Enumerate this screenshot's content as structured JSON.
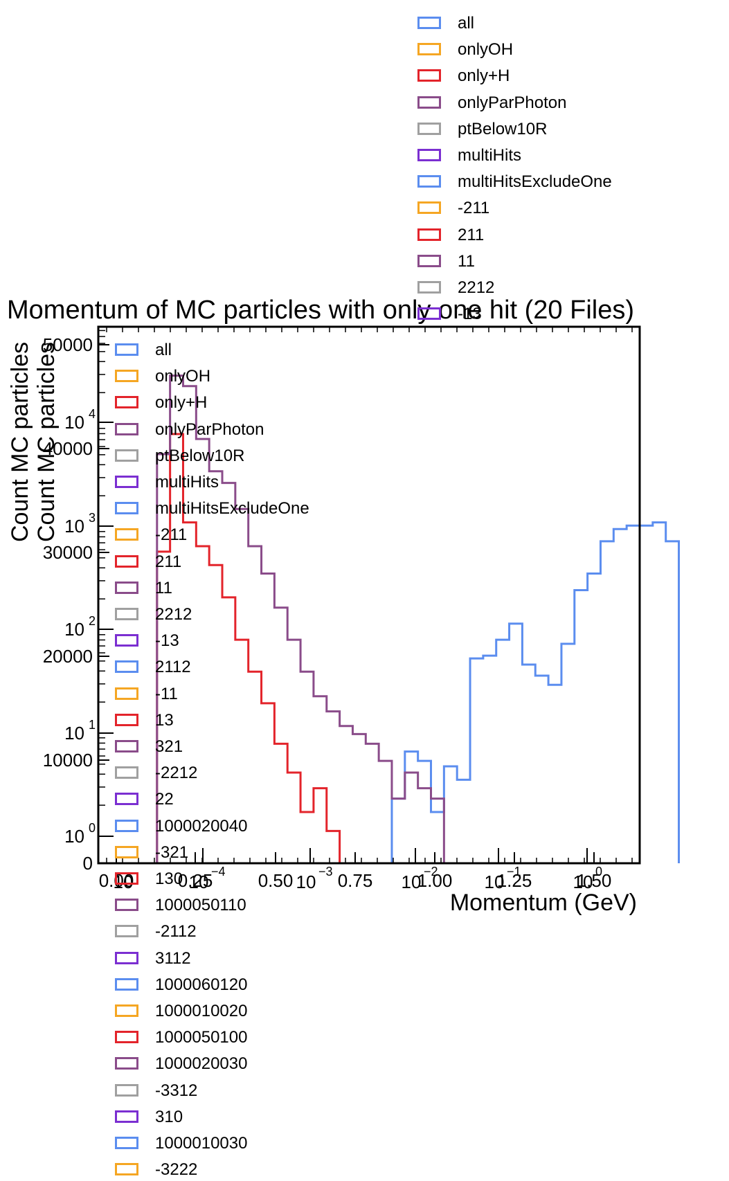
{
  "chart_data": {
    "type": "step-histogram",
    "title": "Momentum of MC particles with only one hit (20 Files)",
    "xlabel": "Momentum (GeV)",
    "ylabel": "Count MC particles",
    "xlim": [
      0,
      1.66
    ],
    "linear_y_ticks": [
      "0",
      "10000",
      "20000",
      "30000",
      "40000",
      "50000"
    ],
    "linear_x_ticks": [
      "0.00",
      "0.25",
      "0.50",
      "0.75",
      "1.00",
      "1.25",
      "1.50"
    ],
    "log_y_ticks": [
      {
        "base": "10",
        "exp": "0"
      },
      {
        "base": "10",
        "exp": "1"
      },
      {
        "base": "10",
        "exp": "2"
      },
      {
        "base": "10",
        "exp": "3"
      },
      {
        "base": "10",
        "exp": "4"
      }
    ],
    "log_x_ticks": [
      {
        "base": "10",
        "exp": "−4"
      },
      {
        "base": "10",
        "exp": "−3"
      },
      {
        "base": "10",
        "exp": "−2"
      },
      {
        "base": "10",
        "exp": "−1"
      },
      {
        "base": "10",
        "exp": "0"
      }
    ],
    "log_x_stub": "10",
    "log_scale": true,
    "log_ylim": [
      0,
      5.0
    ],
    "bin_width": 0.04,
    "first_bin_start": 0.14,
    "purple_series": {
      "color": "#8a4c8a",
      "counts": [
        0,
        6500,
        35000,
        28000,
        9000,
        4500,
        3500,
        2000,
        900,
        500,
        240,
        120,
        60,
        35,
        25,
        18,
        15,
        12,
        8,
        3,
        6,
        4,
        3
      ]
    },
    "red_series": {
      "color": "#e3242b",
      "counts": [
        0,
        800,
        10000,
        1500,
        900,
        600,
        300,
        120,
        60,
        30,
        12,
        6,
        2,
        4,
        1,
        0,
        0,
        0,
        0,
        0,
        0,
        0,
        0
      ]
    },
    "blue_series": {
      "color": "#5b8def",
      "start_bin": 19,
      "counts": [
        3,
        10,
        8,
        2,
        7,
        5,
        80,
        85,
        120,
        170,
        70,
        55,
        45,
        110,
        350,
        500,
        1000,
        1300,
        1400,
        1400,
        1500,
        1000
      ]
    },
    "legend_top": [
      {
        "label": "all",
        "color": "#5b8def"
      },
      {
        "label": "onlyOH",
        "color": "#f5a623"
      },
      {
        "label": "only+H",
        "color": "#e3242b"
      },
      {
        "label": "onlyParPhoton",
        "color": "#8a4c8a"
      },
      {
        "label": "ptBelow10R",
        "color": "#a0a0a0"
      },
      {
        "label": "multiHits",
        "color": "#7b2fd1"
      },
      {
        "label": "multiHitsExcludeOne",
        "color": "#5b8def"
      },
      {
        "label": "-211",
        "color": "#f5a623"
      },
      {
        "label": "211",
        "color": "#e3242b"
      },
      {
        "label": "11",
        "color": "#8a4c8a"
      },
      {
        "label": "2212",
        "color": "#a0a0a0"
      },
      {
        "label": "-13",
        "color": "#7b2fd1"
      }
    ],
    "legend_main": [
      {
        "label": "all",
        "color": "#5b8def"
      },
      {
        "label": "onlyOH",
        "color": "#f5a623"
      },
      {
        "label": "only+H",
        "color": "#e3242b"
      },
      {
        "label": "onlyParPhoton",
        "color": "#8a4c8a"
      },
      {
        "label": "ptBelow10R",
        "color": "#a0a0a0"
      },
      {
        "label": "multiHits",
        "color": "#7b2fd1"
      },
      {
        "label": "multiHitsExcludeOne",
        "color": "#5b8def"
      },
      {
        "label": "-211",
        "color": "#f5a623"
      },
      {
        "label": "211",
        "color": "#e3242b"
      },
      {
        "label": "11",
        "color": "#8a4c8a"
      },
      {
        "label": "2212",
        "color": "#a0a0a0"
      },
      {
        "label": "-13",
        "color": "#7b2fd1"
      },
      {
        "label": "2112",
        "color": "#5b8def"
      },
      {
        "label": "-11",
        "color": "#f5a623"
      },
      {
        "label": "13",
        "color": "#e3242b"
      },
      {
        "label": "321",
        "color": "#8a4c8a"
      },
      {
        "label": "-2212",
        "color": "#a0a0a0"
      },
      {
        "label": "22",
        "color": "#7b2fd1"
      },
      {
        "label": "1000020040",
        "color": "#5b8def"
      },
      {
        "label": "-321",
        "color": "#f5a623"
      },
      {
        "label": "130",
        "color": "#e3242b"
      },
      {
        "label": "1000050110",
        "color": "#8a4c8a"
      },
      {
        "label": "-2112",
        "color": "#a0a0a0"
      },
      {
        "label": "3112",
        "color": "#7b2fd1"
      },
      {
        "label": "1000060120",
        "color": "#5b8def"
      },
      {
        "label": "1000010020",
        "color": "#f5a623"
      },
      {
        "label": "1000050100",
        "color": "#e3242b"
      },
      {
        "label": "1000020030",
        "color": "#8a4c8a"
      },
      {
        "label": "-3312",
        "color": "#a0a0a0"
      },
      {
        "label": "310",
        "color": "#7b2fd1"
      },
      {
        "label": "1000010030",
        "color": "#5b8def"
      },
      {
        "label": "-3222",
        "color": "#f5a623"
      }
    ]
  }
}
